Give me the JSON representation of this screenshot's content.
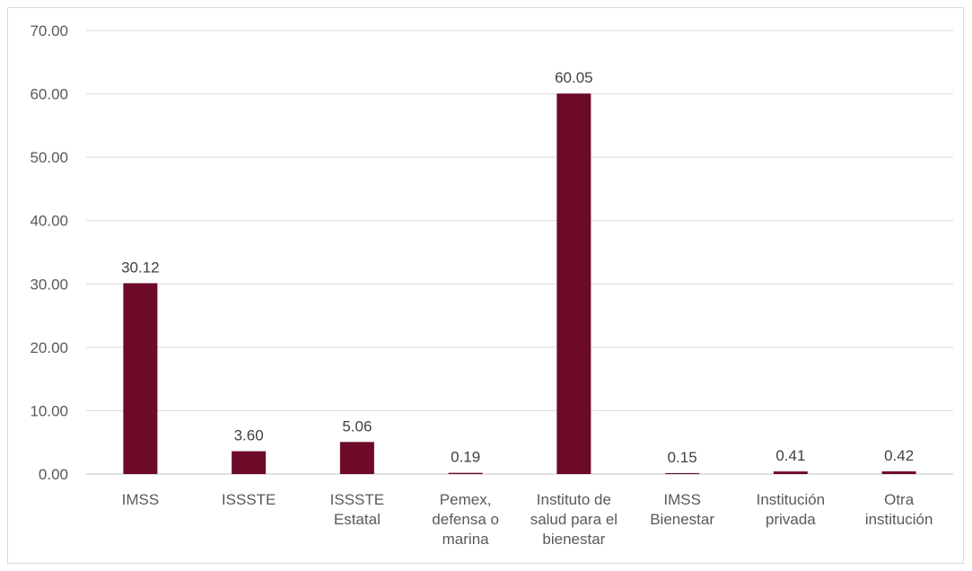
{
  "chart_data": {
    "type": "bar",
    "title": "",
    "xlabel": "",
    "ylabel": "",
    "ylim": [
      0,
      70
    ],
    "y_ticks": [
      "0.00",
      "10.00",
      "20.00",
      "30.00",
      "40.00",
      "50.00",
      "60.00",
      "70.00"
    ],
    "grid": true,
    "bar_color": "#6d0a28",
    "categories": [
      [
        "IMSS"
      ],
      [
        "ISSSTE"
      ],
      [
        "ISSSTE",
        "Estatal"
      ],
      [
        "Pemex,",
        "defensa o",
        "marina"
      ],
      [
        "Instituto de",
        "salud para el",
        "bienestar"
      ],
      [
        "IMSS",
        "Bienestar"
      ],
      [
        "Institución",
        "privada"
      ],
      [
        "Otra",
        "institución"
      ]
    ],
    "values": [
      30.12,
      3.6,
      5.06,
      0.19,
      60.05,
      0.15,
      0.41,
      0.42
    ],
    "value_labels": [
      "30.12",
      "3.60",
      "5.06",
      "0.19",
      "60.05",
      "0.15",
      "0.41",
      "0.42"
    ]
  }
}
